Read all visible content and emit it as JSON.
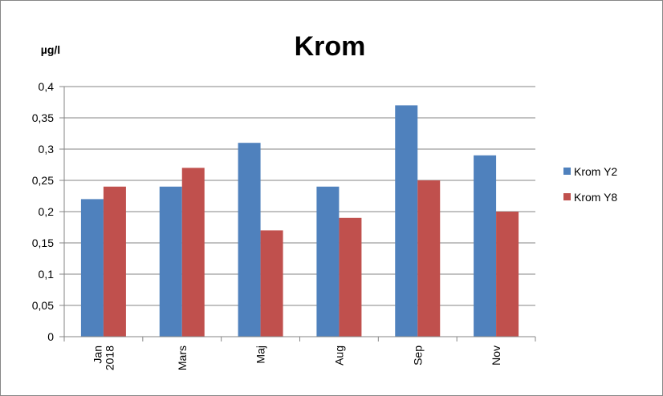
{
  "chart_data": {
    "type": "bar",
    "title": "Krom",
    "ylabel": "µg/l",
    "xlabel": "",
    "categories": [
      "Jan 2018",
      "Mars",
      "Maj",
      "Aug",
      "Sep",
      "Nov"
    ],
    "category_lines": [
      [
        "Jan",
        "2018"
      ],
      [
        "Mars"
      ],
      [
        "Maj"
      ],
      [
        "Aug"
      ],
      [
        "Sep"
      ],
      [
        "Nov"
      ]
    ],
    "series": [
      {
        "name": "Krom Y2",
        "color": "#4F81BD",
        "values": [
          0.22,
          0.24,
          0.31,
          0.24,
          0.37,
          0.29
        ]
      },
      {
        "name": "Krom Y8",
        "color": "#C0504D",
        "values": [
          0.24,
          0.27,
          0.17,
          0.19,
          0.25,
          0.2
        ]
      }
    ],
    "ylim": [
      0,
      0.4
    ],
    "ytick_values": [
      0,
      0.05,
      0.1,
      0.15,
      0.2,
      0.25,
      0.3,
      0.35,
      0.4
    ],
    "ytick_labels": [
      "0",
      "0,05",
      "0,1",
      "0,15",
      "0,2",
      "0,25",
      "0,3",
      "0,35",
      "0,4"
    ],
    "grid": true,
    "legend_position": "right"
  }
}
